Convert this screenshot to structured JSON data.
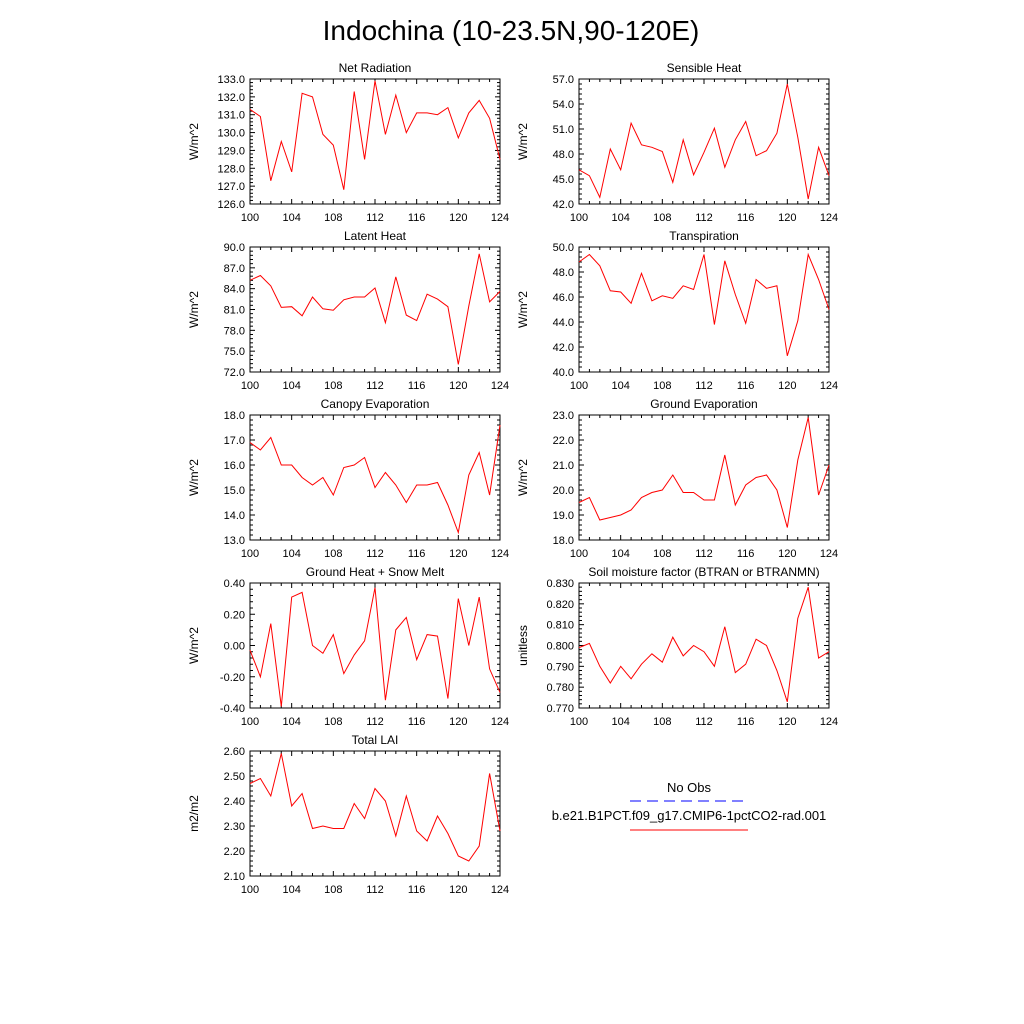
{
  "figure": {
    "title": "Indochina (10-23.5N,90-120E)",
    "line_color": "#ff0000",
    "obs_color": "#0000ff"
  },
  "legend": {
    "obs_label": "No Obs",
    "case_label": "b.e21.B1PCT.f09_g17.CMIP6-1pctCO2-rad.001"
  },
  "chart_data": [
    {
      "type": "line",
      "title": "Net Radiation",
      "ylabel": "W/m^2",
      "xlim": [
        100,
        124
      ],
      "ylim": [
        126.0,
        133.0
      ],
      "xticks": [
        100,
        104,
        108,
        112,
        116,
        120,
        124
      ],
      "yticks": [
        "126.0",
        "127.0",
        "128.0",
        "129.0",
        "130.0",
        "131.0",
        "132.0",
        "133.0"
      ],
      "x": [
        100,
        101,
        102,
        103,
        104,
        105,
        106,
        107,
        108,
        109,
        110,
        111,
        112,
        113,
        114,
        115,
        116,
        117,
        118,
        119,
        120,
        121,
        122,
        123,
        124
      ],
      "values": [
        131.3,
        130.9,
        127.3,
        129.5,
        127.8,
        132.2,
        132.0,
        129.9,
        129.3,
        126.8,
        132.3,
        128.5,
        132.9,
        129.9,
        132.1,
        130.0,
        131.1,
        131.1,
        131.0,
        131.4,
        129.7,
        131.1,
        131.8,
        130.8,
        128.5
      ]
    },
    {
      "type": "line",
      "title": "Sensible Heat",
      "ylabel": "W/m^2",
      "xlim": [
        100,
        124
      ],
      "ylim": [
        42.0,
        57.0
      ],
      "xticks": [
        100,
        104,
        108,
        112,
        116,
        120,
        124
      ],
      "yticks": [
        "42.0",
        "45.0",
        "48.0",
        "51.0",
        "54.0",
        "57.0"
      ],
      "x": [
        100,
        101,
        102,
        103,
        104,
        105,
        106,
        107,
        108,
        109,
        110,
        111,
        112,
        113,
        114,
        115,
        116,
        117,
        118,
        119,
        120,
        121,
        122,
        123,
        124
      ],
      "values": [
        46.1,
        45.4,
        42.8,
        48.6,
        46.1,
        51.7,
        49.1,
        48.8,
        48.3,
        44.6,
        49.7,
        45.5,
        48.2,
        51.1,
        46.4,
        49.7,
        51.9,
        47.8,
        48.4,
        50.5,
        56.4,
        50.0,
        42.6,
        48.8,
        45.4
      ]
    },
    {
      "type": "line",
      "title": "Latent Heat",
      "ylabel": "W/m^2",
      "xlim": [
        100,
        124
      ],
      "ylim": [
        72.0,
        90.0
      ],
      "xticks": [
        100,
        104,
        108,
        112,
        116,
        120,
        124
      ],
      "yticks": [
        "72.0",
        "75.0",
        "78.0",
        "81.0",
        "84.0",
        "87.0",
        "90.0"
      ],
      "x": [
        100,
        101,
        102,
        103,
        104,
        105,
        106,
        107,
        108,
        109,
        110,
        111,
        112,
        113,
        114,
        115,
        116,
        117,
        118,
        119,
        120,
        121,
        122,
        123,
        124
      ],
      "values": [
        85.2,
        85.9,
        84.4,
        81.3,
        81.4,
        80.1,
        82.8,
        81.1,
        80.9,
        82.4,
        82.8,
        82.8,
        84.1,
        79.1,
        85.7,
        80.2,
        79.4,
        83.2,
        82.5,
        81.4,
        73.1,
        81.5,
        89.0,
        82.1,
        83.6
      ]
    },
    {
      "type": "line",
      "title": "Transpiration",
      "ylabel": "W/m^2",
      "xlim": [
        100,
        124
      ],
      "ylim": [
        40.0,
        50.0
      ],
      "xticks": [
        100,
        104,
        108,
        112,
        116,
        120,
        124
      ],
      "yticks": [
        "40.0",
        "42.0",
        "44.0",
        "46.0",
        "48.0",
        "50.0"
      ],
      "x": [
        100,
        101,
        102,
        103,
        104,
        105,
        106,
        107,
        108,
        109,
        110,
        111,
        112,
        113,
        114,
        115,
        116,
        117,
        118,
        119,
        120,
        121,
        122,
        123,
        124
      ],
      "values": [
        48.8,
        49.4,
        48.5,
        46.5,
        46.4,
        45.5,
        47.9,
        45.7,
        46.1,
        45.9,
        46.9,
        46.6,
        49.4,
        43.8,
        48.9,
        46.2,
        43.9,
        47.4,
        46.7,
        46.9,
        41.3,
        44.1,
        49.4,
        47.4,
        45.0
      ]
    },
    {
      "type": "line",
      "title": "Canopy Evaporation",
      "ylabel": "W/m^2",
      "xlim": [
        100,
        124
      ],
      "ylim": [
        13.0,
        18.0
      ],
      "xticks": [
        100,
        104,
        108,
        112,
        116,
        120,
        124
      ],
      "yticks": [
        "13.0",
        "14.0",
        "15.0",
        "16.0",
        "17.0",
        "18.0"
      ],
      "x": [
        100,
        101,
        102,
        103,
        104,
        105,
        106,
        107,
        108,
        109,
        110,
        111,
        112,
        113,
        114,
        115,
        116,
        117,
        118,
        119,
        120,
        121,
        122,
        123,
        124
      ],
      "values": [
        16.9,
        16.6,
        17.1,
        16.0,
        16.0,
        15.5,
        15.2,
        15.5,
        14.8,
        15.9,
        16.0,
        16.3,
        15.1,
        15.7,
        15.2,
        14.5,
        15.2,
        15.2,
        15.3,
        14.4,
        13.3,
        15.6,
        16.5,
        14.8,
        17.6
      ]
    },
    {
      "type": "line",
      "title": "Ground Evaporation",
      "ylabel": "W/m^2",
      "xlim": [
        100,
        124
      ],
      "ylim": [
        18.0,
        23.0
      ],
      "xticks": [
        100,
        104,
        108,
        112,
        116,
        120,
        124
      ],
      "yticks": [
        "18.0",
        "19.0",
        "20.0",
        "21.0",
        "22.0",
        "23.0"
      ],
      "x": [
        100,
        101,
        102,
        103,
        104,
        105,
        106,
        107,
        108,
        109,
        110,
        111,
        112,
        113,
        114,
        115,
        116,
        117,
        118,
        119,
        120,
        121,
        122,
        123,
        124
      ],
      "values": [
        19.5,
        19.7,
        18.8,
        18.9,
        19.0,
        19.2,
        19.7,
        19.9,
        20.0,
        20.6,
        19.9,
        19.9,
        19.6,
        19.6,
        21.4,
        19.4,
        20.2,
        20.5,
        20.6,
        20.0,
        18.5,
        21.2,
        22.9,
        19.8,
        21.0
      ]
    },
    {
      "type": "line",
      "title": "Ground Heat + Snow Melt",
      "ylabel": "W/m^2",
      "xlim": [
        100,
        124
      ],
      "ylim": [
        -0.4,
        0.4
      ],
      "xticks": [
        100,
        104,
        108,
        112,
        116,
        120,
        124
      ],
      "yticks": [
        "-0.40",
        "-0.20",
        "0.00",
        "0.20",
        "0.40"
      ],
      "x": [
        100,
        101,
        102,
        103,
        104,
        105,
        106,
        107,
        108,
        109,
        110,
        111,
        112,
        113,
        114,
        115,
        116,
        117,
        118,
        119,
        120,
        121,
        122,
        123,
        124
      ],
      "values": [
        -0.03,
        -0.2,
        0.14,
        -0.39,
        0.31,
        0.34,
        0.0,
        -0.05,
        0.07,
        -0.18,
        -0.06,
        0.03,
        0.37,
        -0.35,
        0.1,
        0.18,
        -0.09,
        0.07,
        0.06,
        -0.34,
        0.3,
        0.0,
        0.31,
        -0.15,
        -0.3
      ]
    },
    {
      "type": "line",
      "title": "Soil moisture factor (BTRAN or BTRANMN)",
      "ylabel": "unitless",
      "xlim": [
        100,
        124
      ],
      "ylim": [
        0.77,
        0.83
      ],
      "xticks": [
        100,
        104,
        108,
        112,
        116,
        120,
        124
      ],
      "yticks": [
        "0.770",
        "0.780",
        "0.790",
        "0.800",
        "0.810",
        "0.820",
        "0.830"
      ],
      "x": [
        100,
        101,
        102,
        103,
        104,
        105,
        106,
        107,
        108,
        109,
        110,
        111,
        112,
        113,
        114,
        115,
        116,
        117,
        118,
        119,
        120,
        121,
        122,
        123,
        124
      ],
      "values": [
        0.799,
        0.801,
        0.79,
        0.782,
        0.79,
        0.784,
        0.791,
        0.796,
        0.792,
        0.804,
        0.795,
        0.8,
        0.797,
        0.79,
        0.809,
        0.787,
        0.791,
        0.803,
        0.8,
        0.788,
        0.773,
        0.813,
        0.828,
        0.794,
        0.797
      ]
    },
    {
      "type": "line",
      "title": "Total LAI",
      "ylabel": "m2/m2",
      "xlim": [
        100,
        124
      ],
      "ylim": [
        2.1,
        2.6
      ],
      "xticks": [
        100,
        104,
        108,
        112,
        116,
        120,
        124
      ],
      "yticks": [
        "2.10",
        "2.20",
        "2.30",
        "2.40",
        "2.50",
        "2.60"
      ],
      "x": [
        100,
        101,
        102,
        103,
        104,
        105,
        106,
        107,
        108,
        109,
        110,
        111,
        112,
        113,
        114,
        115,
        116,
        117,
        118,
        119,
        120,
        121,
        122,
        123,
        124
      ],
      "values": [
        2.47,
        2.49,
        2.42,
        2.59,
        2.38,
        2.43,
        2.29,
        2.3,
        2.29,
        2.29,
        2.39,
        2.33,
        2.45,
        2.4,
        2.26,
        2.42,
        2.28,
        2.24,
        2.34,
        2.27,
        2.18,
        2.16,
        2.22,
        2.51,
        2.28
      ]
    }
  ]
}
